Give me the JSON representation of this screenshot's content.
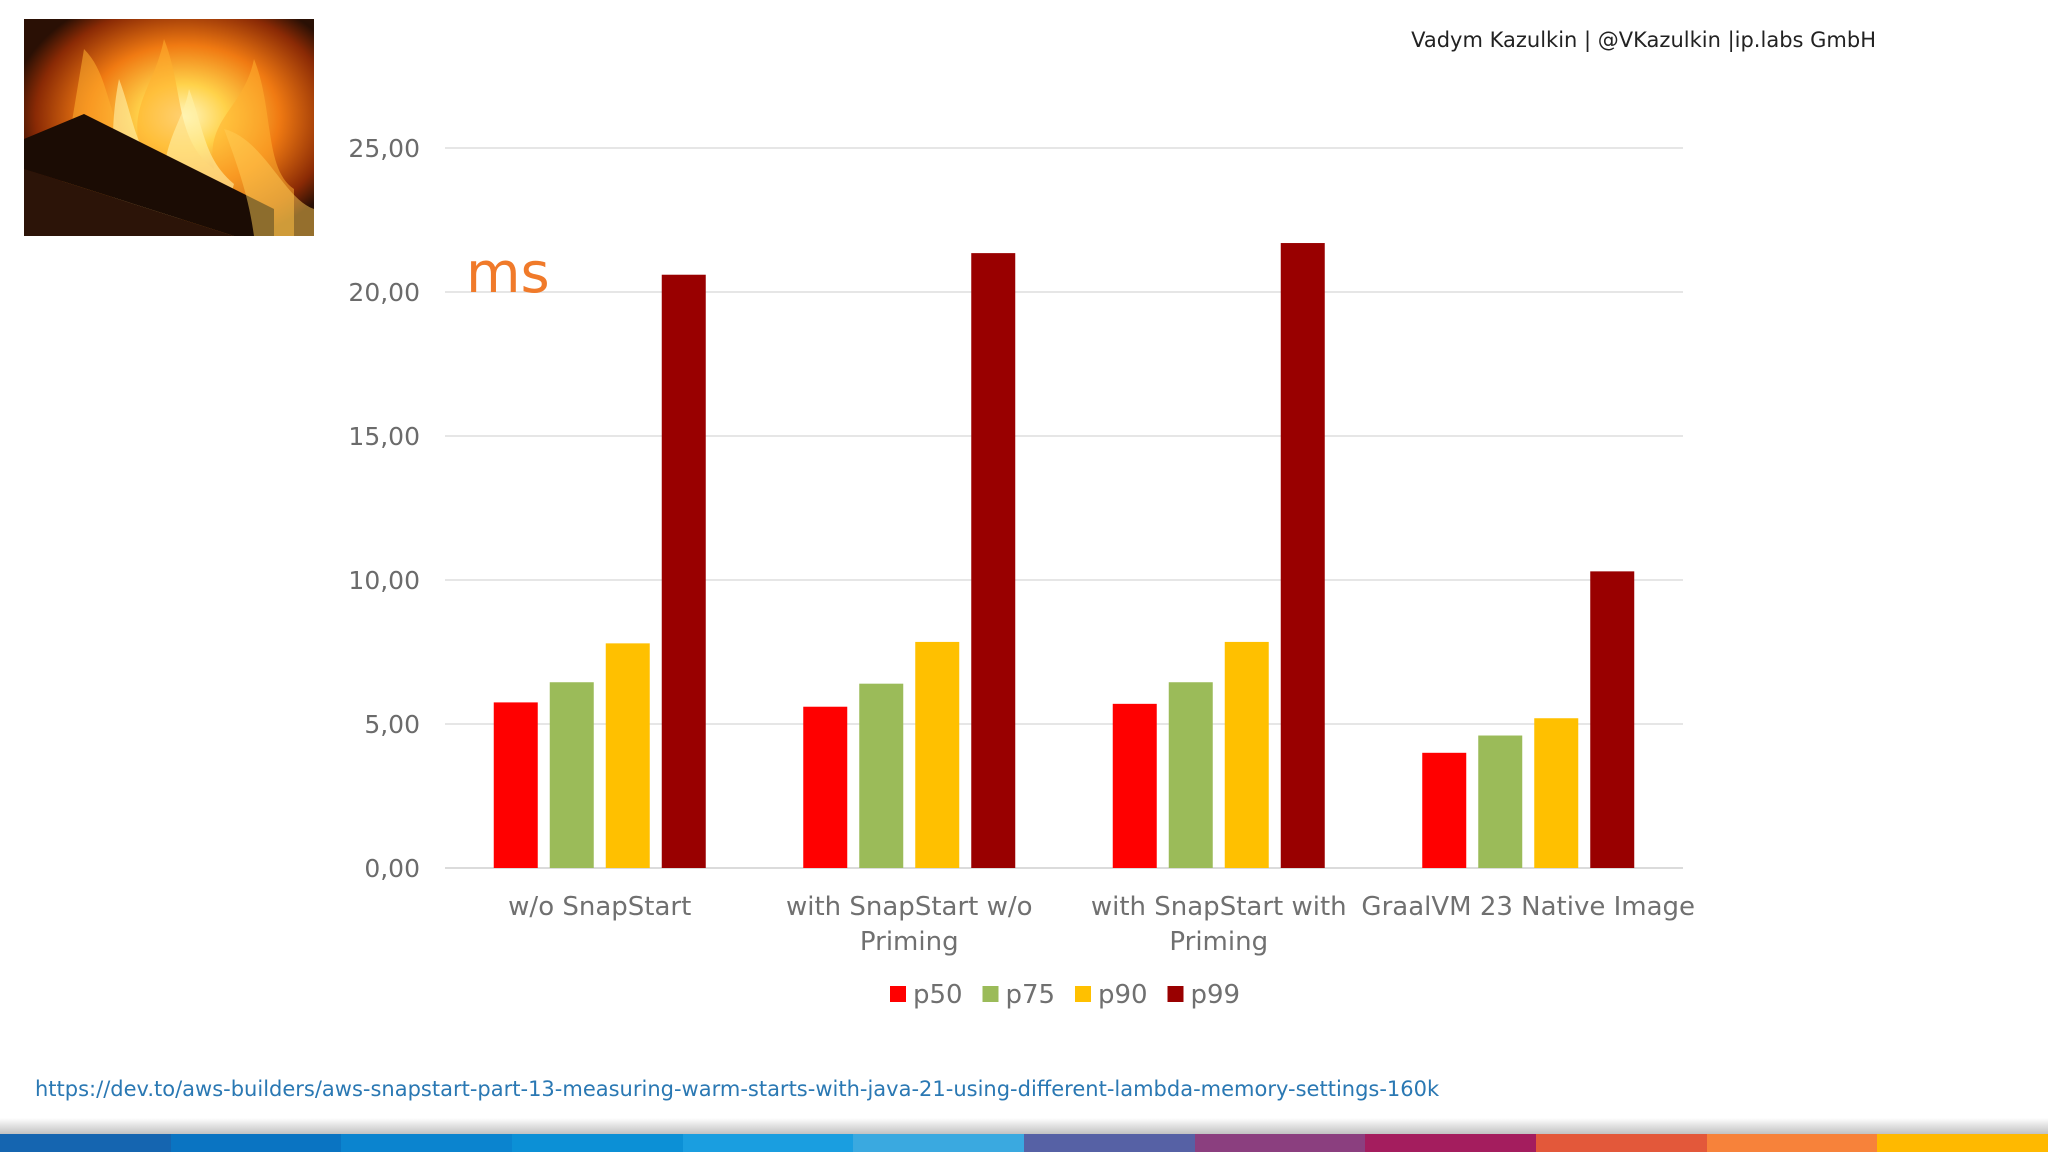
{
  "header": {
    "attribution": "Vadym Kazulkin | @VKazulkin |ip.labs GmbH"
  },
  "photo": {
    "icon": "campfire-photo"
  },
  "chart_data": {
    "type": "bar",
    "unit_label": "ms",
    "ylim": [
      0,
      25
    ],
    "y_ticks": [
      "0,00",
      "5,00",
      "10,00",
      "15,00",
      "20,00",
      "25,00"
    ],
    "categories": [
      [
        "w/o SnapStart"
      ],
      [
        "with SnapStart w/o",
        "Priming"
      ],
      [
        "with SnapStart with",
        "Priming"
      ],
      [
        "GraalVM 23 Native Image"
      ]
    ],
    "series": [
      {
        "name": "p50",
        "color": "#ff0000",
        "values": [
          5.75,
          5.6,
          5.7,
          4.0
        ]
      },
      {
        "name": "p75",
        "color": "#9bbb59",
        "values": [
          6.45,
          6.4,
          6.45,
          4.6
        ]
      },
      {
        "name": "p90",
        "color": "#ffc000",
        "values": [
          7.8,
          7.85,
          7.85,
          5.2
        ]
      },
      {
        "name": "p99",
        "color": "#990000",
        "values": [
          20.6,
          21.35,
          21.7,
          10.3
        ]
      }
    ],
    "legend_position": "bottom",
    "grid": true
  },
  "footer": {
    "source_url": "https://dev.to/aws-builders/aws-snapstart-part-13-measuring-warm-starts-with-java-21-using-different-lambda-memory-settings-160k",
    "stripe_colors": [
      "#1565b0",
      "#0a74c2",
      "#0b84cf",
      "#0c90d6",
      "#1a9ee0",
      "#3aa9e0",
      "#5661a5",
      "#8b3f7f",
      "#a41d5e",
      "#e3583a",
      "#f7823a",
      "#ffb900"
    ]
  }
}
